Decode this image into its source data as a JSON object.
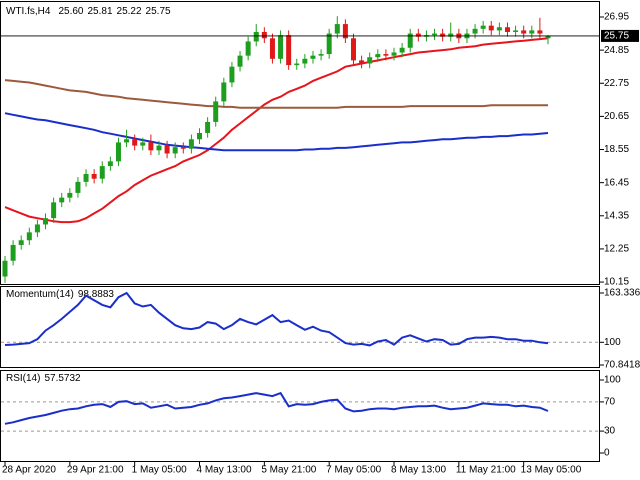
{
  "chart_data": [
    {
      "type": "candlestick",
      "title": "WTI.fs,H4",
      "header_values": [
        {
          "value": 25.6,
          "label": "25.60"
        },
        25.81,
        25.22,
        25.75
      ],
      "categories": [
        "28 Apr 2020",
        null,
        null,
        null,
        null,
        null,
        null,
        null,
        "29 Apr 21:00",
        null,
        null,
        null,
        null,
        null,
        null,
        null,
        "1 May 05:00",
        null,
        null,
        null,
        null,
        null,
        null,
        null,
        "4 May 13:00",
        null,
        null,
        null,
        null,
        null,
        null,
        null,
        "5 May 21:00",
        null,
        null,
        null,
        null,
        null,
        null,
        null,
        "7 May 05:00",
        null,
        null,
        null,
        null,
        null,
        null,
        null,
        "8 May 13:00",
        null,
        null,
        null,
        null,
        null,
        null,
        null,
        "11 May 21:00",
        null,
        null,
        null,
        null,
        null,
        null,
        null,
        "13 May 05:00",
        null,
        null,
        null
      ],
      "open": [
        10.5,
        11.5,
        12.5,
        12.8,
        13.3,
        13.8,
        14.2,
        15.2,
        15.5,
        15.8,
        16.5,
        17.0,
        16.7,
        17.5,
        17.8,
        19.0,
        19.2,
        18.8,
        19.0,
        18.5,
        18.8,
        18.3,
        18.7,
        18.6,
        19.2,
        19.6,
        20.3,
        21.6,
        22.8,
        23.8,
        24.5,
        25.4,
        26.0,
        25.6,
        24.3,
        25.8,
        23.9,
        24.0,
        24.3,
        24.5,
        24.6,
        25.9,
        26.5,
        25.6,
        24.2,
        24.0,
        24.4,
        24.6,
        24.5,
        24.7,
        25.0,
        25.9,
        25.7,
        25.8,
        25.9,
        25.7,
        25.9,
        25.6,
        25.9,
        26.2,
        26.4,
        26.1,
        26.3,
        26.0,
        26.1,
        25.9,
        26.1,
        25.6
      ],
      "high": [
        11.8,
        12.8,
        13.1,
        13.6,
        14.1,
        14.5,
        15.5,
        15.8,
        16.1,
        16.8,
        17.3,
        17.3,
        17.8,
        18.1,
        19.3,
        19.8,
        19.5,
        19.3,
        19.5,
        19.1,
        19.1,
        19.0,
        19.0,
        19.5,
        19.9,
        20.6,
        21.9,
        23.1,
        24.1,
        24.8,
        25.7,
        26.5,
        26.3,
        25.9,
        26.1,
        26.1,
        24.3,
        24.6,
        24.8,
        24.9,
        26.2,
        27.0,
        26.8,
        25.9,
        24.5,
        24.7,
        24.9,
        24.9,
        25.0,
        25.3,
        26.2,
        26.2,
        26.1,
        26.2,
        26.2,
        26.6,
        26.2,
        26.2,
        26.5,
        26.7,
        26.7,
        26.6,
        26.6,
        26.4,
        26.4,
        26.4,
        26.9,
        25.81
      ],
      "low": [
        10.1,
        11.2,
        12.2,
        12.5,
        13.0,
        13.5,
        13.9,
        14.9,
        15.2,
        15.5,
        16.2,
        16.4,
        16.4,
        17.2,
        17.5,
        18.7,
        18.5,
        18.5,
        18.2,
        18.2,
        18.0,
        18.0,
        18.3,
        18.3,
        18.9,
        19.3,
        20.0,
        21.3,
        22.5,
        23.5,
        24.2,
        25.1,
        25.3,
        24.0,
        24.0,
        23.6,
        23.6,
        23.7,
        24.0,
        24.2,
        24.3,
        25.6,
        25.3,
        23.9,
        23.7,
        23.7,
        24.1,
        24.2,
        24.2,
        24.4,
        24.7,
        25.4,
        25.4,
        25.5,
        25.4,
        25.4,
        25.3,
        25.3,
        25.6,
        25.9,
        25.8,
        25.8,
        25.7,
        25.7,
        25.6,
        25.6,
        25.6,
        25.22
      ],
      "close": [
        11.5,
        12.5,
        12.8,
        13.3,
        13.8,
        14.2,
        15.2,
        15.5,
        15.8,
        16.5,
        17.0,
        16.7,
        17.5,
        17.8,
        19.0,
        19.2,
        18.8,
        19.0,
        18.5,
        18.8,
        18.3,
        18.7,
        18.6,
        19.2,
        19.6,
        20.3,
        21.6,
        22.8,
        23.8,
        24.5,
        25.4,
        26.0,
        25.6,
        24.3,
        25.8,
        23.9,
        24.0,
        24.3,
        24.5,
        24.6,
        25.9,
        26.5,
        25.6,
        24.2,
        24.0,
        24.4,
        24.6,
        24.5,
        24.7,
        25.0,
        25.9,
        25.7,
        25.8,
        25.9,
        25.7,
        25.9,
        25.6,
        25.9,
        26.2,
        26.4,
        26.1,
        26.3,
        26.0,
        26.1,
        25.9,
        26.1,
        25.9,
        25.75
      ],
      "up_color": "#1e9e1e",
      "down_color": "#e01818",
      "lines": [
        {
          "color": "#e8141c",
          "values": [
            14.9,
            14.7,
            14.5,
            14.3,
            14.2,
            14.1,
            14.0,
            13.95,
            13.95,
            14.0,
            14.2,
            14.5,
            14.8,
            15.2,
            15.6,
            15.9,
            16.3,
            16.6,
            16.9,
            17.1,
            17.3,
            17.5,
            17.8,
            18.0,
            18.2,
            18.5,
            18.9,
            19.3,
            19.8,
            20.2,
            20.6,
            21.0,
            21.4,
            21.7,
            21.9,
            22.2,
            22.4,
            22.6,
            22.9,
            23.1,
            23.3,
            23.5,
            23.8,
            23.9,
            24.0,
            24.1,
            24.2,
            24.3,
            24.4,
            24.5,
            24.6,
            24.7,
            24.75,
            24.8,
            24.85,
            24.9,
            25.0,
            25.05,
            25.1,
            25.2,
            25.25,
            25.3,
            25.35,
            25.4,
            25.45,
            25.5,
            25.55,
            25.6
          ]
        },
        {
          "color": "#9b5a3c",
          "values": [
            22.95,
            22.9,
            22.85,
            22.8,
            22.7,
            22.6,
            22.5,
            22.4,
            22.3,
            22.25,
            22.2,
            22.1,
            22.0,
            21.95,
            21.9,
            21.8,
            21.75,
            21.7,
            21.65,
            21.6,
            21.55,
            21.5,
            21.45,
            21.4,
            21.35,
            21.3,
            21.3,
            21.25,
            21.25,
            21.2,
            21.2,
            21.2,
            21.2,
            21.2,
            21.2,
            21.2,
            21.2,
            21.2,
            21.2,
            21.2,
            21.2,
            21.2,
            21.25,
            21.25,
            21.25,
            21.25,
            21.25,
            21.25,
            21.25,
            21.25,
            21.3,
            21.3,
            21.3,
            21.3,
            21.3,
            21.3,
            21.3,
            21.3,
            21.3,
            21.3,
            21.35,
            21.35,
            21.35,
            21.35,
            21.35,
            21.35,
            21.35,
            21.35
          ]
        },
        {
          "color": "#1a2ecc",
          "values": [
            20.85,
            20.75,
            20.65,
            20.55,
            20.45,
            20.4,
            20.3,
            20.2,
            20.1,
            20.0,
            19.9,
            19.8,
            19.65,
            19.55,
            19.45,
            19.35,
            19.25,
            19.15,
            19.05,
            18.95,
            18.85,
            18.8,
            18.75,
            18.7,
            18.65,
            18.6,
            18.55,
            18.5,
            18.5,
            18.5,
            18.5,
            18.5,
            18.5,
            18.5,
            18.5,
            18.5,
            18.5,
            18.55,
            18.55,
            18.6,
            18.6,
            18.65,
            18.65,
            18.7,
            18.75,
            18.8,
            18.85,
            18.9,
            18.95,
            19.0,
            19.0,
            19.05,
            19.1,
            19.15,
            19.2,
            19.2,
            19.25,
            19.3,
            19.3,
            19.35,
            19.35,
            19.4,
            19.4,
            19.45,
            19.5,
            19.5,
            19.55,
            19.6
          ]
        }
      ],
      "ylim": [
        10.09,
        27.71
      ],
      "yticks": [
        26.95,
        24.85,
        22.75,
        20.65,
        18.55,
        16.45,
        14.35,
        12.25,
        10.15
      ]
    },
    {
      "type": "line",
      "title": "Momentum(14)",
      "color": "#1a2ecc",
      "values": [
        96.5,
        97,
        98,
        99,
        104,
        115,
        122,
        130,
        139,
        148,
        160,
        154,
        148,
        145,
        158,
        163.3362,
        150,
        146,
        148,
        138,
        130,
        122,
        118,
        117,
        119,
        126,
        124,
        117,
        122,
        130,
        126,
        123,
        129,
        135,
        126,
        128,
        122,
        116,
        120,
        115,
        113,
        106,
        99,
        97,
        98,
        96,
        101,
        103,
        97,
        106,
        109,
        105,
        101,
        104,
        103,
        97,
        98,
        104,
        106,
        106,
        107,
        106,
        104,
        104,
        102,
        102,
        100,
        98.8883
      ],
      "ylim": [
        70.8418,
        163.3362
      ],
      "yticks": [
        163.3362,
        100,
        70.8418
      ],
      "levels": [
        100
      ]
    },
    {
      "type": "line",
      "title": "RSI(14)",
      "color": "#1a2ecc",
      "values": [
        40,
        42,
        45,
        48,
        50,
        52,
        55,
        58,
        60,
        61,
        64,
        66,
        67,
        63,
        70,
        71,
        67,
        68,
        62,
        64,
        66,
        61,
        62,
        63,
        66,
        68,
        72,
        75,
        76,
        78,
        80,
        82,
        80,
        78,
        82,
        64,
        67,
        66,
        67,
        70,
        72,
        73,
        61,
        57,
        58,
        60,
        61,
        61,
        60,
        62,
        63,
        64,
        64,
        65,
        62,
        60,
        61,
        62,
        65,
        68,
        67,
        66,
        66,
        64,
        65,
        63,
        62,
        57.5732
      ],
      "ylim": [
        0,
        100
      ],
      "yticks": [
        100,
        70,
        30,
        0
      ],
      "levels": [
        70,
        30
      ]
    }
  ]
}
